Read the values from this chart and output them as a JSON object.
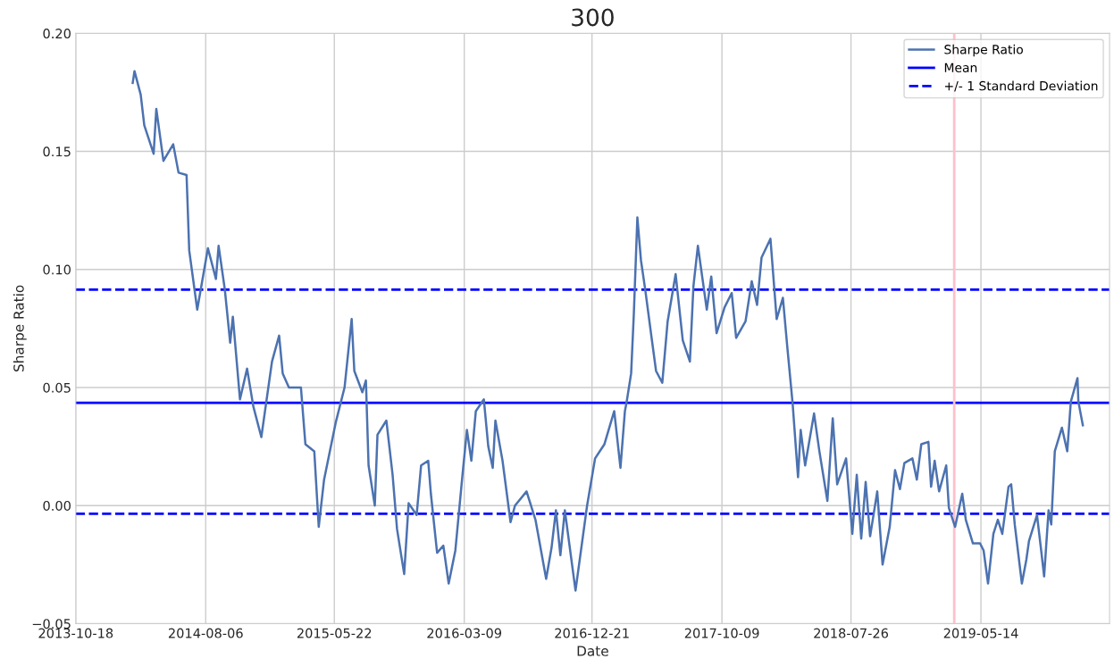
{
  "chart_data": {
    "type": "line",
    "title": "300",
    "xlabel": "Date",
    "ylabel": "Sharpe Ratio",
    "xlim": [
      "2013-10-18",
      "2020-02-27"
    ],
    "xticks": [
      "2013-10-18",
      "2014-08-06",
      "2015-05-22",
      "2016-03-09",
      "2016-12-21",
      "2017-10-09",
      "2018-07-26",
      "2019-05-14"
    ],
    "ylim": [
      -0.05,
      0.2
    ],
    "yticks": [
      {
        "value": -0.05,
        "label": "−0.05"
      },
      {
        "value": 0.0,
        "label": "0.00"
      },
      {
        "value": 0.05,
        "label": "0.05"
      },
      {
        "value": 0.1,
        "label": "0.10"
      },
      {
        "value": 0.15,
        "label": "0.15"
      },
      {
        "value": 0.2,
        "label": "0.20"
      }
    ],
    "grid": true,
    "legend": "top right",
    "marker": "none",
    "line_style": "solid",
    "series": [
      {
        "name": "Sharpe Ratio",
        "color": "#4c72b0",
        "x": [
          "2014-02-23",
          "2014-02-27",
          "2014-03-13",
          "2014-03-21",
          "2014-04-11",
          "2014-04-17",
          "2014-05-03",
          "2014-05-25",
          "2014-06-06",
          "2014-06-24",
          "2014-06-30",
          "2014-07-18",
          "2014-08-11",
          "2014-08-29",
          "2014-09-04",
          "2014-09-18",
          "2014-09-30",
          "2014-10-06",
          "2014-10-22",
          "2014-11-07",
          "2014-11-21",
          "2014-12-09",
          "2015-01-02",
          "2015-01-18",
          "2015-01-26",
          "2015-02-09",
          "2015-03-08",
          "2015-03-18",
          "2015-04-07",
          "2015-04-17",
          "2015-04-29",
          "2015-05-25",
          "2015-06-14",
          "2015-06-30",
          "2015-07-06",
          "2015-07-24",
          "2015-08-01",
          "2015-08-07",
          "2015-08-21",
          "2015-08-27",
          "2015-09-16",
          "2015-09-30",
          "2015-10-10",
          "2015-10-26",
          "2015-11-05",
          "2015-11-23",
          "2015-12-03",
          "2015-12-19",
          "2015-12-25",
          "2016-01-08",
          "2016-01-22",
          "2016-02-03",
          "2016-02-18",
          "2016-03-05",
          "2016-03-15",
          "2016-03-25",
          "2016-04-04",
          "2016-04-22",
          "2016-05-02",
          "2016-05-12",
          "2016-05-18",
          "2016-06-03",
          "2016-06-21",
          "2016-07-01",
          "2016-07-27",
          "2016-08-16",
          "2016-09-09",
          "2016-09-21",
          "2016-10-01",
          "2016-10-11",
          "2016-10-21",
          "2016-11-14",
          "2016-12-10",
          "2016-12-28",
          "2017-01-18",
          "2017-02-09",
          "2017-02-23",
          "2017-03-05",
          "2017-03-09",
          "2017-03-19",
          "2017-03-25",
          "2017-04-02",
          "2017-04-10",
          "2017-04-20",
          "2017-05-04",
          "2017-05-14",
          "2017-05-28",
          "2017-06-09",
          "2017-06-27",
          "2017-07-13",
          "2017-07-29",
          "2017-08-06",
          "2017-08-16",
          "2017-09-05",
          "2017-09-15",
          "2017-09-27",
          "2017-10-15",
          "2017-10-31",
          "2017-11-10",
          "2017-12-01",
          "2017-12-15",
          "2017-12-27",
          "2018-01-06",
          "2018-01-26",
          "2018-02-09",
          "2018-02-23",
          "2018-03-05",
          "2018-03-17",
          "2018-03-29",
          "2018-04-04",
          "2018-04-14",
          "2018-05-04",
          "2018-05-16",
          "2018-06-03",
          "2018-06-15",
          "2018-06-25",
          "2018-07-15",
          "2018-07-29",
          "2018-08-08",
          "2018-08-18",
          "2018-08-28",
          "2018-09-07",
          "2018-09-23",
          "2018-10-05",
          "2018-10-21",
          "2018-11-02",
          "2018-11-13",
          "2018-11-23",
          "2018-12-11",
          "2018-12-21",
          "2018-12-31",
          "2019-01-16",
          "2019-01-22",
          "2019-01-30",
          "2019-02-09",
          "2019-02-25",
          "2019-03-03",
          "2019-03-17",
          "2019-04-02",
          "2019-04-10",
          "2019-04-26",
          "2019-05-12",
          "2019-05-20",
          "2019-05-30",
          "2019-06-11",
          "2019-06-21",
          "2019-07-01",
          "2019-07-15",
          "2019-07-21",
          "2019-07-29",
          "2019-08-14",
          "2019-08-24",
          "2019-08-30",
          "2019-09-17",
          "2019-09-27",
          "2019-10-03",
          "2019-10-13",
          "2019-10-19",
          "2019-10-27",
          "2019-11-12",
          "2019-11-24",
          "2019-12-02",
          "2019-12-17",
          "2019-12-19",
          "2019-12-29"
        ],
        "values": [
          0.179,
          0.184,
          0.174,
          0.161,
          0.149,
          0.168,
          0.146,
          0.153,
          0.141,
          0.14,
          0.108,
          0.083,
          0.109,
          0.096,
          0.11,
          0.0915,
          0.069,
          0.08,
          0.045,
          0.058,
          0.042,
          0.029,
          0.061,
          0.072,
          0.056,
          0.05,
          0.05,
          0.026,
          0.023,
          -0.009,
          0.011,
          0.035,
          0.05,
          0.079,
          0.057,
          0.048,
          0.053,
          0.017,
          0.0,
          0.03,
          0.036,
          0.013,
          -0.01,
          -0.029,
          0.001,
          -0.004,
          0.017,
          0.019,
          0.005,
          -0.02,
          -0.017,
          -0.033,
          -0.019,
          0.013,
          0.032,
          0.019,
          0.04,
          0.045,
          0.025,
          0.016,
          0.036,
          0.019,
          -0.007,
          0.0,
          0.006,
          -0.006,
          -0.031,
          -0.018,
          -0.002,
          -0.021,
          -0.002,
          -0.036,
          0.0,
          0.02,
          0.026,
          0.04,
          0.016,
          0.04,
          0.044,
          0.056,
          0.081,
          0.122,
          0.104,
          0.091,
          0.071,
          0.057,
          0.052,
          0.078,
          0.098,
          0.07,
          0.061,
          0.093,
          0.11,
          0.083,
          0.097,
          0.073,
          0.084,
          0.09,
          0.071,
          0.078,
          0.095,
          0.085,
          0.105,
          0.113,
          0.079,
          0.088,
          0.067,
          0.043,
          0.012,
          0.032,
          0.017,
          0.039,
          0.023,
          0.002,
          0.037,
          0.009,
          0.02,
          -0.012,
          0.013,
          -0.014,
          0.01,
          -0.013,
          0.006,
          -0.025,
          -0.009,
          0.015,
          0.007,
          0.018,
          0.02,
          0.011,
          0.026,
          0.027,
          0.008,
          0.019,
          0.006,
          0.017,
          -0.001,
          -0.009,
          0.005,
          -0.006,
          -0.016,
          -0.016,
          -0.019,
          -0.033,
          -0.012,
          -0.006,
          -0.012,
          0.008,
          0.009,
          -0.008,
          -0.033,
          -0.023,
          -0.015,
          -0.004,
          -0.02,
          -0.03,
          -0.002,
          -0.008,
          0.023,
          0.033,
          0.023,
          0.044,
          0.054,
          0.044,
          0.034
        ]
      }
    ],
    "ref_lines": [
      {
        "axis": "y",
        "value": 0.0435,
        "label": "Mean",
        "color": "#0000ff",
        "line_style": "solid"
      },
      {
        "axis": "y",
        "value": 0.0915,
        "label": "+/- 1 Standard Deviation",
        "color": "#0000ff",
        "line_style": "dashed"
      },
      {
        "axis": "y",
        "value": -0.0035,
        "color": "#0000ff",
        "line_style": "dashed"
      },
      {
        "axis": "x",
        "value": "2019-03-15",
        "color": "#ffc0cb",
        "line_style": "solid"
      }
    ]
  }
}
